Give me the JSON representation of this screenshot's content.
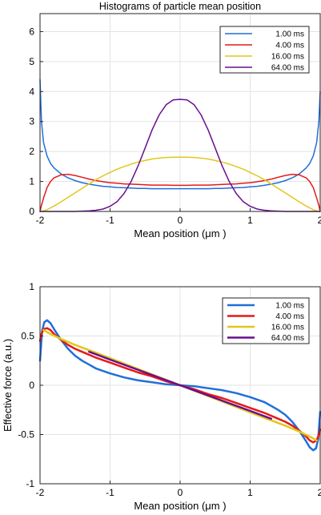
{
  "chart_data": [
    {
      "type": "line",
      "title": "Histograms of particle mean position",
      "xlabel": "Mean position (μm )",
      "ylabel": "",
      "xlim": [
        -2,
        2
      ],
      "ylim": [
        0,
        6.6
      ],
      "xticks": [
        -2,
        -1,
        0,
        1,
        2
      ],
      "xtick_labels": [
        "-2",
        "-1",
        "0",
        "1",
        "2"
      ],
      "yticks": [
        0,
        1,
        2,
        3,
        4,
        5,
        6
      ],
      "ytick_labels": [
        "0",
        "1",
        "2",
        "3",
        "4",
        "5",
        "6"
      ],
      "grid": true,
      "legend_position": "top-right",
      "x": [
        -2.0,
        -1.98,
        -1.95,
        -1.9,
        -1.85,
        -1.8,
        -1.7,
        -1.6,
        -1.5,
        -1.4,
        -1.3,
        -1.2,
        -1.1,
        -1.0,
        -0.9,
        -0.8,
        -0.7,
        -0.6,
        -0.5,
        -0.4,
        -0.3,
        -0.2,
        -0.1,
        0.0,
        0.1,
        0.2,
        0.3,
        0.4,
        0.5,
        0.6,
        0.7,
        0.8,
        0.9,
        1.0,
        1.1,
        1.2,
        1.3,
        1.4,
        1.5,
        1.6,
        1.7,
        1.8,
        1.85,
        1.9,
        1.95,
        1.98,
        2.0
      ],
      "series": [
        {
          "name": "1.00  ms",
          "color": "#1f6fdb",
          "values": [
            4.4,
            3.0,
            2.3,
            1.85,
            1.6,
            1.45,
            1.25,
            1.12,
            1.03,
            0.96,
            0.91,
            0.87,
            0.84,
            0.82,
            0.8,
            0.79,
            0.78,
            0.77,
            0.77,
            0.76,
            0.76,
            0.76,
            0.76,
            0.76,
            0.76,
            0.76,
            0.76,
            0.76,
            0.77,
            0.77,
            0.78,
            0.79,
            0.8,
            0.82,
            0.84,
            0.87,
            0.91,
            0.96,
            1.03,
            1.12,
            1.25,
            1.45,
            1.6,
            1.85,
            2.3,
            3.0,
            4.0
          ]
        },
        {
          "name": "4.00  ms",
          "color": "#e41a1a",
          "values": [
            0.0,
            0.2,
            0.45,
            0.8,
            1.0,
            1.12,
            1.22,
            1.24,
            1.2,
            1.14,
            1.08,
            1.03,
            0.99,
            0.96,
            0.94,
            0.92,
            0.91,
            0.9,
            0.89,
            0.88,
            0.88,
            0.88,
            0.87,
            0.87,
            0.87,
            0.88,
            0.88,
            0.88,
            0.89,
            0.9,
            0.91,
            0.92,
            0.94,
            0.96,
            0.99,
            1.03,
            1.08,
            1.14,
            1.2,
            1.24,
            1.22,
            1.12,
            1.0,
            0.8,
            0.45,
            0.2,
            0.0
          ]
        },
        {
          "name": "16.00  ms",
          "color": "#e0c81a",
          "values": [
            0.0,
            0.0,
            0.02,
            0.06,
            0.12,
            0.18,
            0.32,
            0.47,
            0.62,
            0.77,
            0.92,
            1.06,
            1.19,
            1.3,
            1.41,
            1.5,
            1.58,
            1.65,
            1.7,
            1.75,
            1.78,
            1.8,
            1.81,
            1.81,
            1.81,
            1.8,
            1.78,
            1.75,
            1.7,
            1.65,
            1.58,
            1.5,
            1.41,
            1.3,
            1.19,
            1.06,
            0.92,
            0.77,
            0.62,
            0.47,
            0.32,
            0.18,
            0.12,
            0.06,
            0.02,
            0.0,
            0.0
          ]
        },
        {
          "name": "64.00  ms",
          "color": "#6a0f8e",
          "values": [
            0.0,
            0.0,
            0.0,
            0.0,
            0.0,
            0.0,
            0.0,
            0.0,
            0.0,
            0.01,
            0.02,
            0.04,
            0.08,
            0.17,
            0.33,
            0.6,
            1.0,
            1.52,
            2.12,
            2.72,
            3.22,
            3.56,
            3.72,
            3.74,
            3.72,
            3.56,
            3.22,
            2.72,
            2.12,
            1.52,
            1.0,
            0.6,
            0.33,
            0.17,
            0.08,
            0.04,
            0.02,
            0.01,
            0.0,
            0.0,
            0.0,
            0.0,
            0.0,
            0.0,
            0.0,
            0.0,
            0.0
          ]
        }
      ]
    },
    {
      "type": "line",
      "title": "",
      "xlabel": "Mean position (μm )",
      "ylabel": "Effective force (a.u.)",
      "xlim": [
        -2,
        2
      ],
      "ylim": [
        -1,
        1
      ],
      "xticks": [
        -2,
        -1,
        0,
        1,
        2
      ],
      "xtick_labels": [
        "-2",
        "-1",
        "0",
        "1",
        "2"
      ],
      "yticks": [
        -1,
        -0.5,
        0,
        0.5,
        1
      ],
      "ytick_labels": [
        "-1",
        "-0.5",
        "0",
        "0.5",
        "1"
      ],
      "grid": true,
      "legend_position": "top-right",
      "series": [
        {
          "name": "1.00  ms",
          "color": "#1f6fdb",
          "x": [
            -2.0,
            -1.97,
            -1.94,
            -1.9,
            -1.85,
            -1.8,
            -1.7,
            -1.6,
            -1.5,
            -1.4,
            -1.3,
            -1.2,
            -1.0,
            -0.8,
            -0.6,
            -0.4,
            -0.2,
            0.0,
            0.2,
            0.4,
            0.6,
            0.8,
            1.0,
            1.2,
            1.3,
            1.4,
            1.5,
            1.6,
            1.7,
            1.8,
            1.85,
            1.9,
            1.94,
            1.97,
            2.0
          ],
          "values": [
            0.25,
            0.55,
            0.64,
            0.66,
            0.63,
            0.57,
            0.46,
            0.37,
            0.3,
            0.25,
            0.21,
            0.17,
            0.12,
            0.08,
            0.05,
            0.03,
            0.01,
            0.0,
            -0.01,
            -0.03,
            -0.05,
            -0.08,
            -0.12,
            -0.17,
            -0.21,
            -0.25,
            -0.3,
            -0.37,
            -0.46,
            -0.57,
            -0.63,
            -0.66,
            -0.64,
            -0.55,
            -0.27
          ]
        },
        {
          "name": "4.00  ms",
          "color": "#e41a1a",
          "x": [
            -2.0,
            -1.98,
            -1.95,
            -1.9,
            -1.85,
            -1.8,
            -1.7,
            -1.6,
            -1.5,
            -1.4,
            -1.2,
            -1.0,
            -0.8,
            -0.6,
            -0.4,
            -0.2,
            0.0,
            0.2,
            0.4,
            0.6,
            0.8,
            1.0,
            1.2,
            1.4,
            1.5,
            1.6,
            1.7,
            1.8,
            1.85,
            1.9,
            1.95,
            1.98,
            2.0
          ],
          "values": [
            0.45,
            0.52,
            0.57,
            0.58,
            0.56,
            0.52,
            0.46,
            0.41,
            0.37,
            0.34,
            0.28,
            0.23,
            0.18,
            0.13,
            0.09,
            0.04,
            0.0,
            -0.04,
            -0.09,
            -0.13,
            -0.18,
            -0.23,
            -0.28,
            -0.34,
            -0.37,
            -0.41,
            -0.46,
            -0.52,
            -0.56,
            -0.58,
            -0.56,
            -0.5,
            -0.45
          ]
        },
        {
          "name": "16.00  ms",
          "color": "#e0c81a",
          "x": [
            -1.95,
            -1.85,
            -1.7,
            -1.5,
            -1.2,
            -0.8,
            -0.4,
            0.0,
            0.4,
            0.8,
            1.2,
            1.5,
            1.7,
            1.85,
            1.95
          ],
          "values": [
            0.56,
            0.52,
            0.47,
            0.41,
            0.33,
            0.22,
            0.11,
            0.0,
            -0.11,
            -0.22,
            -0.33,
            -0.41,
            -0.47,
            -0.52,
            -0.56
          ]
        },
        {
          "name": "64.00  ms",
          "color": "#6a0f8e",
          "x": [
            -1.3,
            -1.0,
            -0.5,
            0.0,
            0.5,
            1.0,
            1.3
          ],
          "values": [
            0.34,
            0.26,
            0.13,
            0.0,
            -0.13,
            -0.26,
            -0.34
          ]
        }
      ]
    }
  ]
}
